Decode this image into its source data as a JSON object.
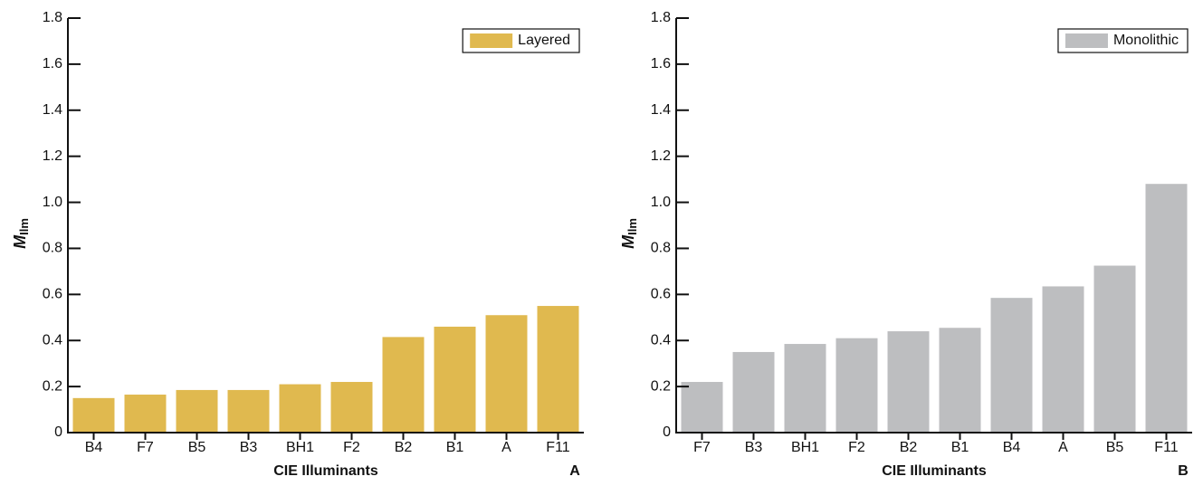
{
  "chart_data": [
    {
      "type": "bar",
      "ylabel": "M",
      "ylabel_sub": "Ilm",
      "xlabel": "CIE Illuminants",
      "panel": "A",
      "categories": [
        "B4",
        "F7",
        "B5",
        "B3",
        "BH1",
        "F2",
        "B2",
        "B1",
        "A",
        "F11"
      ],
      "series": [
        {
          "name": "Layered",
          "color": "#e0b94f",
          "values": [
            0.15,
            0.165,
            0.185,
            0.185,
            0.21,
            0.22,
            0.415,
            0.46,
            0.51,
            0.55
          ]
        }
      ],
      "ylim": [
        0,
        1.8
      ],
      "yticks": [
        0,
        0.2,
        0.4,
        0.6,
        0.8,
        {
          "value": 1,
          "label": "1.0"
        },
        1.2,
        1.4,
        1.6,
        1.8
      ],
      "legend": "upper right"
    },
    {
      "type": "bar",
      "ylabel": "M",
      "ylabel_sub": "Ilm",
      "xlabel": "CIE Illuminants",
      "panel": "B",
      "categories": [
        "F7",
        "B3",
        "BH1",
        "F2",
        "B2",
        "B1",
        "B4",
        "A",
        "B5",
        "F11"
      ],
      "series": [
        {
          "name": "Monolithic",
          "color": "#bdbec0",
          "values": [
            0.22,
            0.35,
            0.385,
            0.41,
            0.44,
            0.455,
            0.585,
            0.635,
            0.725,
            1.08
          ]
        }
      ],
      "ylim": [
        0,
        1.8
      ],
      "yticks": [
        0,
        0.2,
        0.4,
        0.6,
        0.8,
        {
          "value": 1,
          "label": "1.0"
        },
        1.2,
        1.4,
        1.6,
        1.8
      ],
      "legend": "upper right"
    }
  ]
}
